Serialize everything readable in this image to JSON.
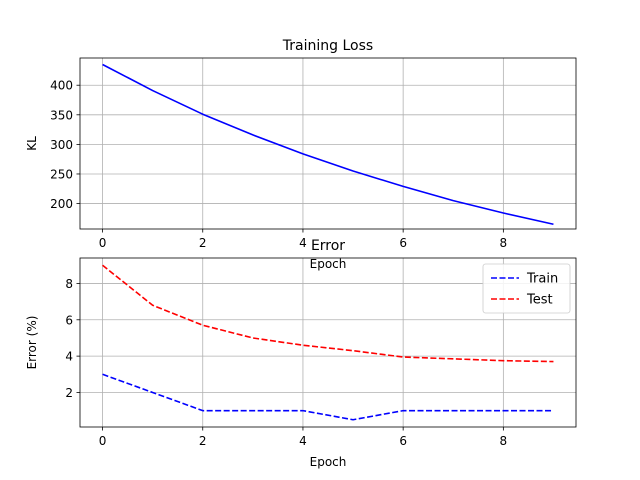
{
  "chart_data": [
    {
      "type": "line",
      "title": "Training Loss",
      "xlabel": "Epoch",
      "ylabel": "KL",
      "x": [
        0,
        1,
        2,
        3,
        4,
        5,
        6,
        7,
        8,
        9
      ],
      "xlim": [
        -0.45,
        9.45
      ],
      "ylim": [
        157,
        446
      ],
      "xticks": [
        0,
        2,
        4,
        6,
        8
      ],
      "yticks": [
        200,
        250,
        300,
        350,
        400
      ],
      "grid": true,
      "legend": null,
      "series": [
        {
          "color": "#0000ff",
          "linestyle": "solid",
          "values": [
            435,
            391,
            351,
            316,
            284,
            255,
            229,
            205,
            184,
            165
          ]
        }
      ]
    },
    {
      "type": "line",
      "title": "Error",
      "xlabel": "Epoch",
      "ylabel": "Error (%)",
      "x": [
        0,
        1,
        2,
        3,
        4,
        5,
        6,
        7,
        8,
        9
      ],
      "xlim": [
        -0.45,
        9.45
      ],
      "ylim": [
        0.1,
        9.4
      ],
      "xticks": [
        0,
        2,
        4,
        6,
        8
      ],
      "yticks": [
        2,
        4,
        6,
        8
      ],
      "grid": true,
      "legend": "top-right",
      "series": [
        {
          "name": "Train",
          "color": "#0000ff",
          "linestyle": "dashed",
          "values": [
            3.0,
            2.0,
            1.0,
            1.0,
            1.0,
            0.5,
            1.0,
            1.0,
            1.0,
            1.0
          ]
        },
        {
          "name": "Test",
          "color": "#ff0000",
          "linestyle": "dashed",
          "values": [
            9.0,
            6.8,
            5.7,
            5.0,
            4.6,
            4.3,
            3.95,
            3.85,
            3.75,
            3.7
          ]
        }
      ]
    }
  ]
}
